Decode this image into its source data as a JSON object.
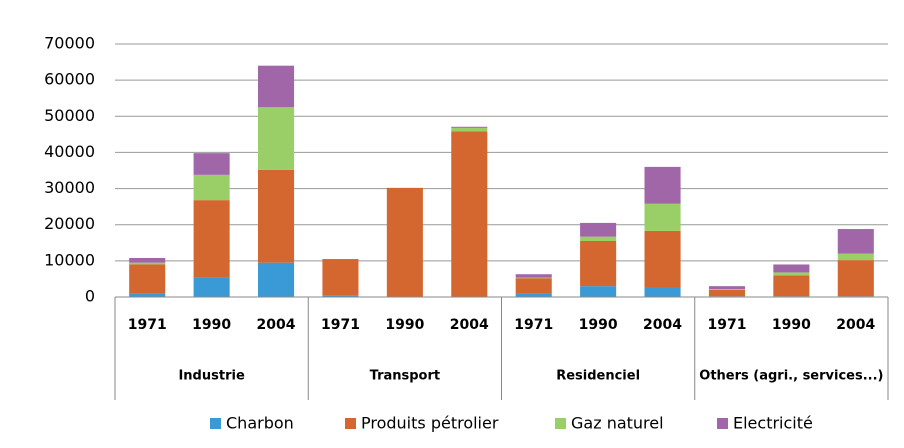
{
  "chart_data": {
    "type": "stacked_bar",
    "categories": [
      "1971",
      "1990",
      "2004",
      "1971",
      "1990",
      "2004",
      "1971",
      "1990",
      "2004",
      "1971",
      "1990",
      "2004"
    ],
    "groups": [
      "Industrie",
      "Transport",
      "Residenciel",
      "Others (agri., services...)"
    ],
    "series": [
      {
        "name": "Charbon",
        "color": "#3a9ad6",
        "values": [
          1000,
          5500,
          9500,
          500,
          0,
          0,
          1000,
          3000,
          2500,
          200,
          200,
          200
        ]
      },
      {
        "name": "Produits pétrolier",
        "color": "#d4672f",
        "values": [
          8000,
          21300,
          25700,
          10000,
          30200,
          45800,
          4200,
          12500,
          15800,
          1800,
          5800,
          10000
        ]
      },
      {
        "name": "Gaz naturel",
        "color": "#99cf66",
        "values": [
          500,
          7000,
          17300,
          0,
          0,
          1000,
          200,
          1200,
          7500,
          200,
          800,
          1800
        ]
      },
      {
        "name": "Electricité",
        "color": "#a066a8",
        "values": [
          1300,
          6000,
          11500,
          0,
          0,
          300,
          900,
          3800,
          10200,
          800,
          2200,
          6800
        ]
      }
    ],
    "ylim": [
      0,
      70000
    ],
    "yticks": [
      0,
      10000,
      20000,
      30000,
      40000,
      50000,
      60000,
      70000
    ],
    "grid": true,
    "legend": "bottom"
  }
}
